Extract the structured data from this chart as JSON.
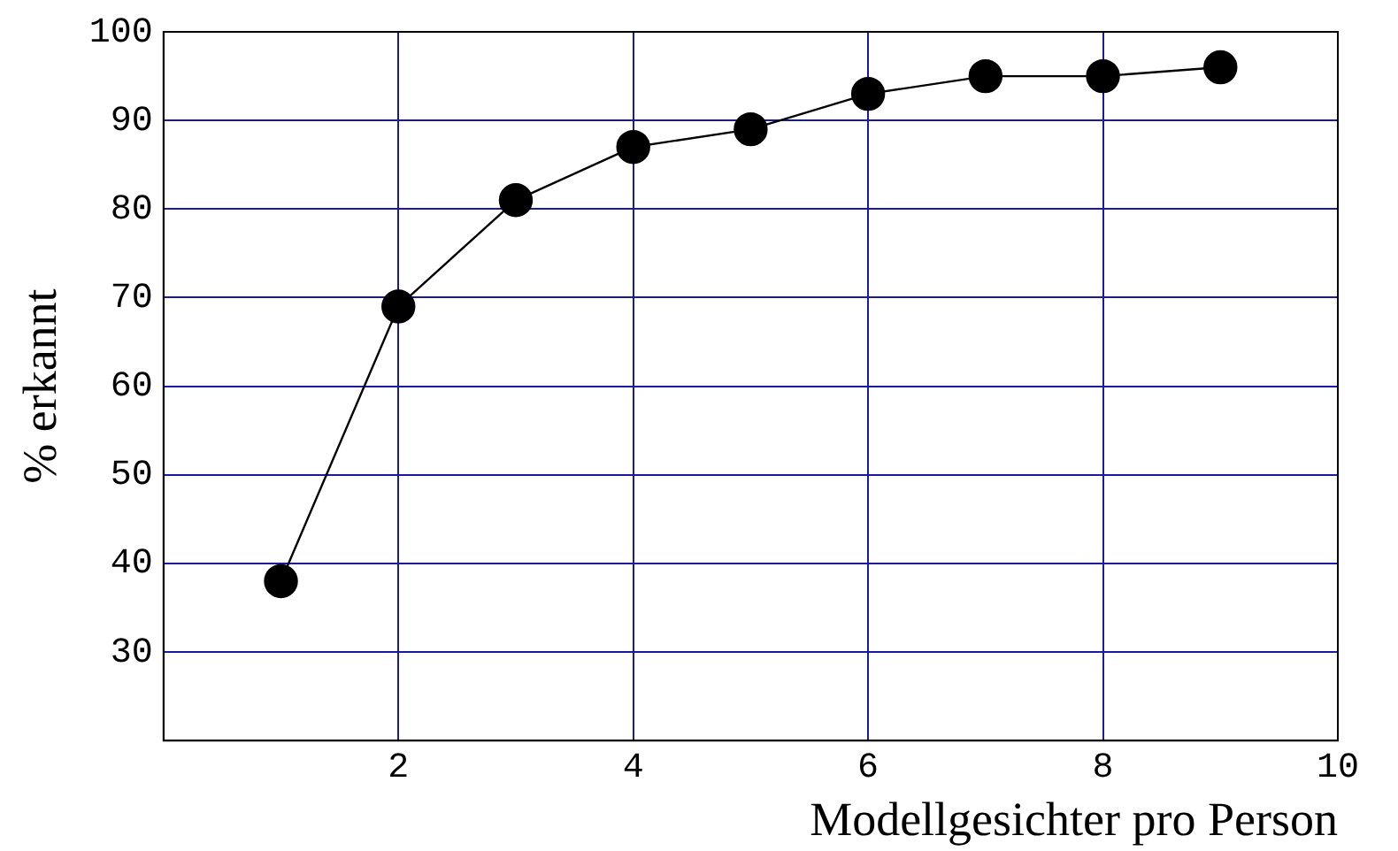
{
  "chart_data": {
    "type": "line",
    "xlabel": "Modellgesichter pro Person",
    "ylabel": "% erkannt",
    "x": [
      1,
      2,
      3,
      4,
      5,
      6,
      7,
      8,
      9
    ],
    "series": [
      {
        "color": "#000000",
        "values": [
          38,
          69,
          81,
          87,
          89,
          93,
          95,
          95,
          96
        ]
      }
    ],
    "xlim": [
      0,
      10
    ],
    "xticks": [
      2,
      4,
      6,
      8,
      10
    ],
    "ylim": [
      20,
      100
    ],
    "yticks": [
      30,
      40,
      50,
      60,
      70,
      80,
      90,
      100
    ],
    "grid": true,
    "marker": "circle",
    "line_style": "solid",
    "legend": false
  }
}
